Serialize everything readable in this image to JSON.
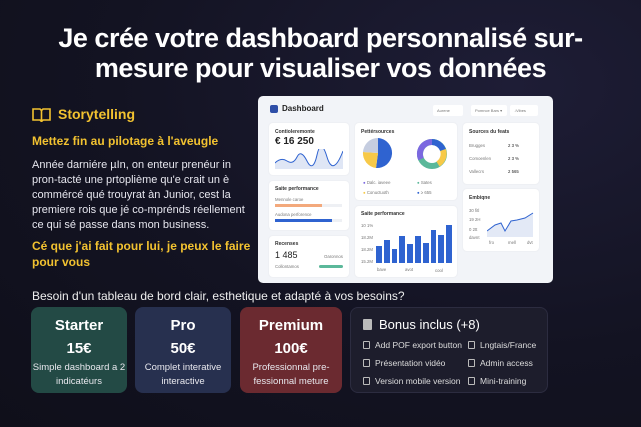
{
  "headline": {
    "line1": "Je crée votre dashboard personnalisé sur-",
    "line2": "mesure pour visualiser vos données"
  },
  "story": {
    "icon": "book-icon",
    "label": "Storytelling",
    "subtitle": "Mettez fin au pilotage à l'aveugle",
    "body": "Année darniére µIn, on enteur prenéur in pron-tacté une prtoplième qu'e crait un è commércé qué trouyrat àn Junior, cest la premiere rois que jé co-mprénds réellement ce qui sé passe dans mon business.",
    "cta": "Cé que j'ai fait pour lui, je peux le faire pour vous"
  },
  "question": "Besoin d'un tableau de bord clair, esthetique et adapté à vos besoins?",
  "dashboard": {
    "title": "Dashboard",
    "dropdowns": [
      "Aurene",
      "Pomnce Bars ▾",
      "↓Vibes"
    ],
    "revenue": {
      "title": "Contioleremonte",
      "value": "€ 16 250"
    },
    "perf": {
      "title": "Saite performance",
      "bar1": "Mennole caroe",
      "bar2": "Audona perforence",
      "bar1_fill": 0.7,
      "bar2_fill": 0.85
    },
    "recenses": {
      "title": "Recenses",
      "value": "1 485",
      "sub": "Collontamos",
      "right": "Oaronnos"
    },
    "sources": {
      "title": "Pettérsources",
      "legend": [
        "Dalc. iaveee",
        "Sates",
        "Conuctuoth",
        "≥ 655"
      ]
    },
    "bars": {
      "title": "Saite performance",
      "yticks": [
        "10 1%",
        "18.2M",
        "18.2M",
        "15.2M"
      ],
      "xticks": [
        "bave",
        "avot",
        "cool"
      ],
      "values": [
        45,
        60,
        38,
        72,
        50,
        72,
        52,
        88,
        75,
        100
      ]
    },
    "feats": {
      "title": "Sources du feats",
      "rows": [
        {
          "k": "Brugges",
          "v": "2 3 %"
        },
        {
          "k": "Comoenlen",
          "v": "2 3 %"
        },
        {
          "k": "Vallecrs",
          "v": "2 565"
        }
      ]
    },
    "line": {
      "title": "Embiqne",
      "yticks": [
        "30 fitl",
        "19 2H",
        "0 2tt",
        "davnt"
      ],
      "xticks": [
        "fro",
        "mell",
        "dvt"
      ]
    },
    "colors": {
      "blue": "#2f63d0",
      "yellow": "#f7c948",
      "green": "#5bb89a",
      "purple": "#7b68e0",
      "orange": "#f3a97c"
    }
  },
  "plans": [
    {
      "name": "Starter",
      "price": "15€",
      "desc": "Simple dashboard a 2 indicatéurs",
      "color": "#234a45"
    },
    {
      "name": "Pro",
      "price": "50€",
      "desc": "Complet interative interactive",
      "color": "#27304f"
    },
    {
      "name": "Premium",
      "price": "100€",
      "desc": "Professionnal pre-fessionnal meture",
      "color": "#6b2a30"
    }
  ],
  "bonus": {
    "title": "Bonus inclus (+8)",
    "items": [
      "Add POF export button",
      "Lngtais/France",
      "Présentation vidéo",
      "Admin access",
      "Version mobile version",
      "Mini-training"
    ]
  }
}
